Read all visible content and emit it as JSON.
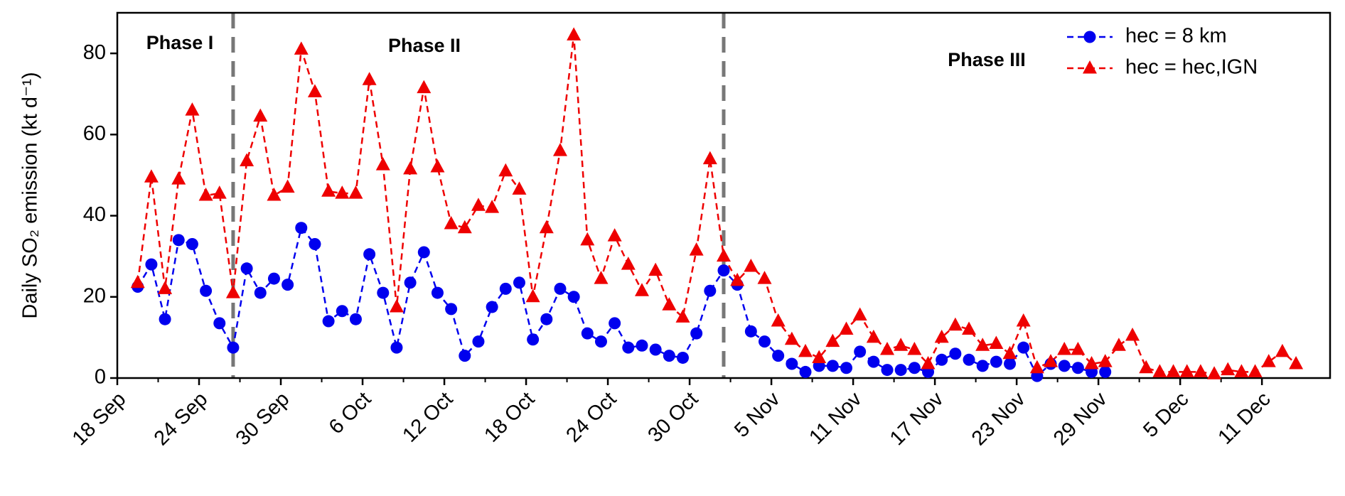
{
  "chart_data": {
    "type": "line",
    "y_label": "Daily SO₂ emission (kt d⁻¹)",
    "annotations": [
      "Phase I",
      "Phase II",
      "Phase III"
    ],
    "phase_lines": [
      8.5,
      44.5
    ],
    "x": [
      1.5,
      2.5,
      3.5,
      4.5,
      5.5,
      6.5,
      7.5,
      8.5,
      9.5,
      10.5,
      11.5,
      12.5,
      13.5,
      14.5,
      15.5,
      16.5,
      17.5,
      18.5,
      19.5,
      20.5,
      21.5,
      22.5,
      23.5,
      24.5,
      25.5,
      26.5,
      27.5,
      28.5,
      29.5,
      30.5,
      31.5,
      32.5,
      33.5,
      34.5,
      35.5,
      36.5,
      37.5,
      38.5,
      39.5,
      40.5,
      41.5,
      42.5,
      43.5,
      44.5,
      45.5,
      46.5,
      47.5,
      48.5,
      49.5,
      50.5,
      51.5,
      52.5,
      53.5,
      54.5,
      55.5,
      56.5,
      57.5,
      58.5,
      59.5,
      60.5,
      61.5,
      62.5,
      63.5,
      64.5,
      65.5,
      66.5,
      67.5,
      68.5,
      69.5,
      70.5,
      71.5,
      72.5,
      73.5,
      74.5,
      75.5,
      76.5,
      77.5,
      78.5,
      79.5,
      80.5,
      81.5,
      82.5,
      83.5,
      84.5,
      85.5,
      86.5
    ],
    "series": [
      {
        "name": "hec = 8 km",
        "color": "#0000ee",
        "marker": "circle",
        "values": [
          22.5,
          28,
          14.5,
          34,
          33,
          21.5,
          13.5,
          7.5,
          27,
          21,
          24.5,
          23,
          37,
          33,
          14,
          16.5,
          14.5,
          30.5,
          21,
          7.5,
          23.5,
          31,
          21,
          17,
          5.5,
          9,
          17.5,
          22,
          23.5,
          9.5,
          14.5,
          22,
          20,
          11,
          9,
          13.5,
          7.5,
          8,
          7,
          5.5,
          5,
          11,
          21.5,
          26.5,
          23,
          11.5,
          9,
          5.5,
          3.5,
          1.5,
          3,
          3,
          2.5,
          6.5,
          4,
          2,
          2,
          2.5,
          1.5,
          4.5,
          6,
          4.5,
          3,
          4,
          3.5,
          7.5,
          0.5,
          3.5,
          3,
          2.5,
          1.5,
          1.5,
          null,
          null,
          null,
          null,
          null,
          null,
          null,
          null,
          null,
          null,
          null,
          null,
          null,
          null
        ]
      },
      {
        "name": "hec = hec,IGN",
        "color": "#ee0000",
        "marker": "triangle",
        "values": [
          23.5,
          49.5,
          22,
          49,
          66,
          45,
          45.5,
          21,
          53.5,
          64.5,
          45,
          47,
          81,
          70.5,
          46,
          45.5,
          45.5,
          73.5,
          52.5,
          17.5,
          51.5,
          71.5,
          52,
          38,
          37,
          42.5,
          42,
          51,
          46.5,
          20,
          37,
          56,
          84.5,
          34,
          24.5,
          35,
          28,
          21.5,
          26.5,
          18,
          15,
          31.5,
          54,
          30,
          24,
          27.5,
          24.5,
          14,
          9.5,
          6.5,
          5,
          9,
          12,
          15.5,
          10,
          7,
          8,
          7,
          3.5,
          10,
          13,
          12,
          8,
          8.5,
          6,
          14,
          2.5,
          4,
          7,
          7,
          3.5,
          4,
          8,
          10.5,
          2.5,
          1.5,
          1.5,
          1.5,
          1.5,
          1,
          2,
          1.5,
          1.5,
          4,
          6.5,
          3.5
        ]
      }
    ],
    "xlim": [
      0,
      89
    ],
    "xticks": [
      {
        "value": 0,
        "label": "18 Sep"
      },
      {
        "value": 6,
        "label": "24 Sep"
      },
      {
        "value": 12,
        "label": "30 Sep"
      },
      {
        "value": 18,
        "label": "6 Oct"
      },
      {
        "value": 24,
        "label": "12 Oct"
      },
      {
        "value": 30,
        "label": "18 Oct"
      },
      {
        "value": 36,
        "label": "24 Oct"
      },
      {
        "value": 42,
        "label": "30 Oct"
      },
      {
        "value": 48,
        "label": "5 Nov"
      },
      {
        "value": 54,
        "label": "11 Nov"
      },
      {
        "value": 60,
        "label": "17 Nov"
      },
      {
        "value": 66,
        "label": "23 Nov"
      },
      {
        "value": 72,
        "label": "29 Nov"
      },
      {
        "value": 78,
        "label": "5 Dec"
      },
      {
        "value": 84,
        "label": "11 Dec"
      }
    ],
    "ylim": [
      0,
      90
    ],
    "yticks": [
      0,
      20,
      40,
      60,
      80
    ],
    "legend": "upper right",
    "grid": false
  }
}
